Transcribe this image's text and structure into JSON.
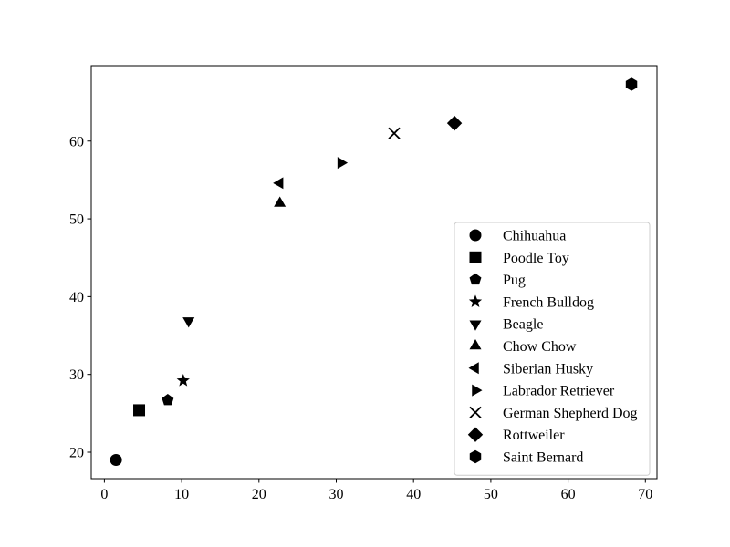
{
  "chart_data": {
    "type": "scatter",
    "title": "",
    "xlabel": "",
    "ylabel": "",
    "xlim": [
      -1.7,
      71.5
    ],
    "ylim": [
      16.6,
      69.7
    ],
    "xticks": [
      0,
      10,
      20,
      30,
      40,
      50,
      60,
      70
    ],
    "yticks": [
      20,
      30,
      40,
      50,
      60
    ],
    "grid": false,
    "legend_position": "lower-right",
    "marker_color": "#000000",
    "series": [
      {
        "name": "Chihuahua",
        "marker": "circle",
        "x": 1.5,
        "y": 19.0
      },
      {
        "name": "Poodle Toy",
        "marker": "square",
        "x": 4.5,
        "y": 25.4
      },
      {
        "name": "Pug",
        "marker": "pentagon",
        "x": 8.2,
        "y": 26.7
      },
      {
        "name": "French Bulldog",
        "marker": "star",
        "x": 10.2,
        "y": 29.2
      },
      {
        "name": "Beagle",
        "marker": "triangle-down",
        "x": 10.9,
        "y": 36.9
      },
      {
        "name": "Chow Chow",
        "marker": "triangle-up",
        "x": 22.7,
        "y": 52.0
      },
      {
        "name": "Siberian Husky",
        "marker": "triangle-left",
        "x": 22.7,
        "y": 54.6
      },
      {
        "name": "Labrador Retriever",
        "marker": "triangle-right",
        "x": 30.6,
        "y": 57.2
      },
      {
        "name": "German Shepherd Dog",
        "marker": "x",
        "x": 37.5,
        "y": 61.0
      },
      {
        "name": "Rottweiler",
        "marker": "diamond",
        "x": 45.3,
        "y": 62.3
      },
      {
        "name": "Saint Bernard",
        "marker": "hexagon",
        "x": 68.2,
        "y": 67.3
      }
    ]
  }
}
